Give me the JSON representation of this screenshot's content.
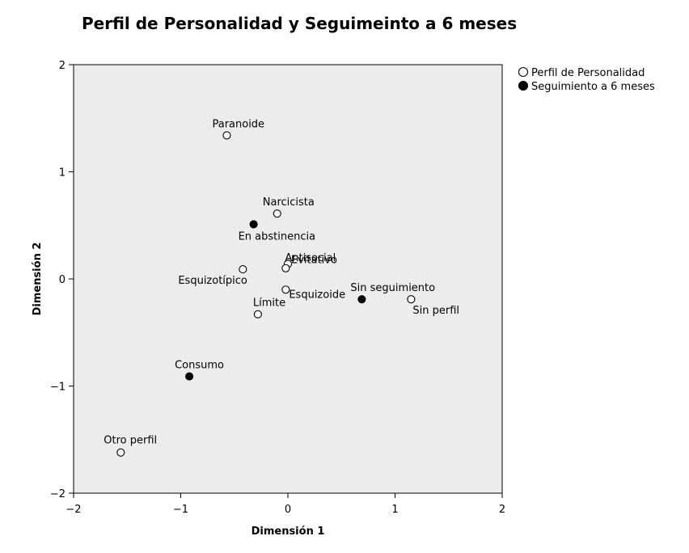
{
  "chart_data": {
    "type": "scatter",
    "title": "Perfil de Personalidad y Seguimeinto a 6 meses",
    "xlabel": "Dimensión 1",
    "ylabel": "Dimensión 2",
    "xlim": [
      -2,
      2
    ],
    "ylim": [
      -2,
      2
    ],
    "xticks": [
      -2,
      -1,
      0,
      1,
      2
    ],
    "yticks": [
      -2,
      -1,
      0,
      1,
      2
    ],
    "xtick_labels": [
      "−2",
      "−1",
      "0",
      "1",
      "2"
    ],
    "ytick_labels": [
      "−2",
      "−1",
      "0",
      "1",
      "2"
    ],
    "grid": false,
    "background": "#ececec",
    "legend_position": "top-right, outside plot",
    "series": [
      {
        "name": "Perfil de Personalidad",
        "marker": "open-circle",
        "points": [
          {
            "label": "Paranoide",
            "x": -0.57,
            "y": 1.34
          },
          {
            "label": "Narcicista",
            "x": -0.1,
            "y": 0.61
          },
          {
            "label": "Esquizotípico",
            "x": -0.42,
            "y": 0.09
          },
          {
            "label": "Evitativo",
            "x": 0.0,
            "y": 0.14
          },
          {
            "label": "Antisocial",
            "x": -0.02,
            "y": 0.1
          },
          {
            "label": "Esquizoide",
            "x": -0.02,
            "y": -0.1
          },
          {
            "label": "Límite",
            "x": -0.28,
            "y": -0.33
          },
          {
            "label": "Sin perfil",
            "x": 1.15,
            "y": -0.19
          },
          {
            "label": "Otro perfil",
            "x": -1.56,
            "y": -1.62
          }
        ]
      },
      {
        "name": "Seguimiento a 6 meses",
        "marker": "filled-circle",
        "points": [
          {
            "label": "En abstinencia",
            "x": -0.32,
            "y": 0.51
          },
          {
            "label": "Sin seguimiento",
            "x": 0.69,
            "y": -0.19
          },
          {
            "label": "Consumo",
            "x": -0.92,
            "y": -0.91
          }
        ]
      }
    ]
  }
}
